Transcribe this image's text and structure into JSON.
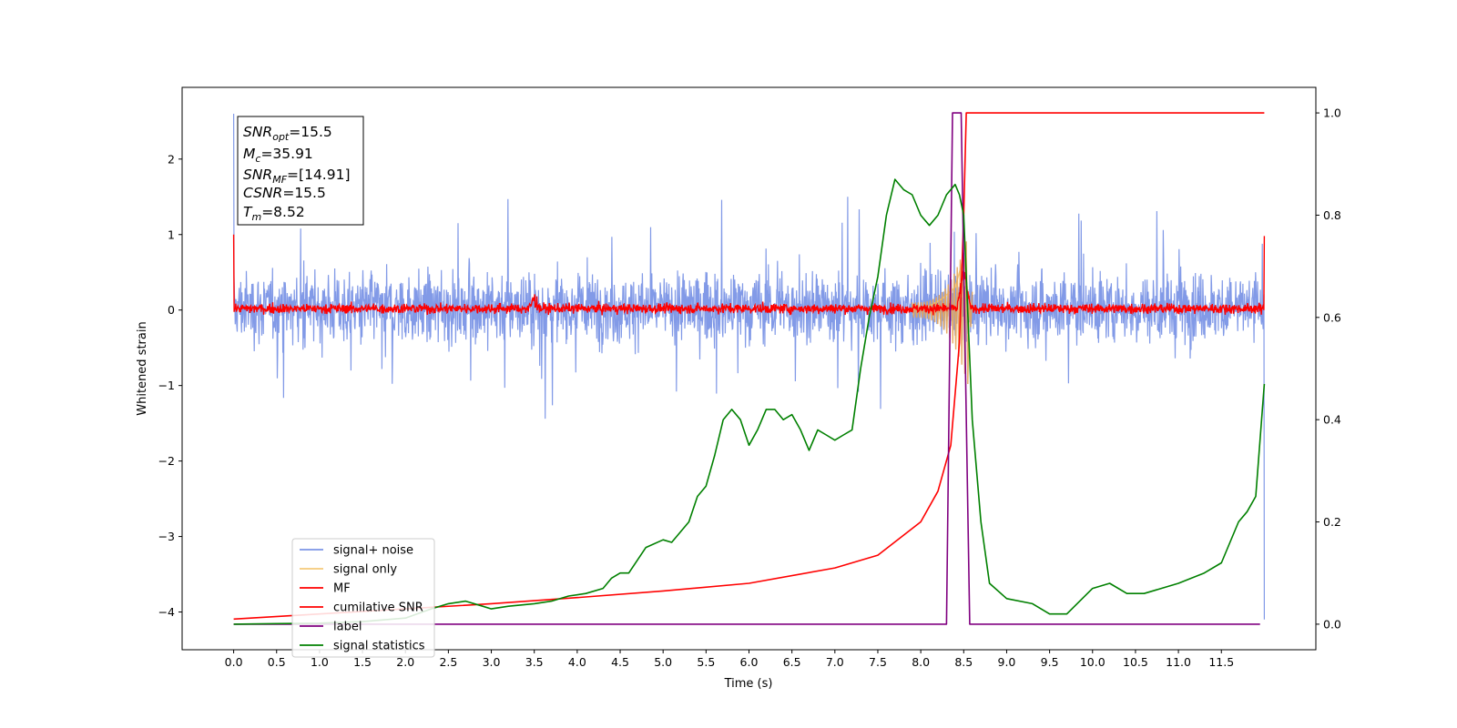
{
  "chart_data": {
    "type": "line",
    "xlabel": "Time (s)",
    "ylabel_left": "Whitened strain",
    "ylabel_right": "",
    "xlim": [
      -0.6,
      12.6
    ],
    "ylim_left": [
      -4.5,
      2.95
    ],
    "ylim_right": [
      -0.05,
      1.05
    ],
    "grid": false,
    "x_ticks": [
      "0.0",
      "0.5",
      "1.0",
      "1.5",
      "2.0",
      "2.5",
      "3.0",
      "3.5",
      "4.0",
      "4.5",
      "5.0",
      "5.5",
      "6.0",
      "6.5",
      "7.0",
      "7.5",
      "8.0",
      "8.5",
      "9.0",
      "9.5",
      "10.0",
      "10.5",
      "11.0",
      "11.5"
    ],
    "y_ticks_left": [
      "2",
      "1",
      "0",
      "−1",
      "−2",
      "−3",
      "−4"
    ],
    "y_ticks_right": [
      "1.0",
      "0.8",
      "0.6",
      "0.4",
      "0.2",
      "0.0"
    ],
    "info_box": {
      "snr_opt": {
        "main": "SNR",
        "sub": "opt",
        "value": "=15.5"
      },
      "mc": {
        "main": "M",
        "sub": "c",
        "value": "=35.91"
      },
      "snr_mf": {
        "main": "SNR",
        "sub": "MF",
        "value": "=[14.91]"
      },
      "csnr": {
        "main": "CSNR",
        "sub": "",
        "value": "=15.5"
      },
      "tm": {
        "main": "T",
        "sub": "m",
        "value": "=8.52"
      }
    },
    "legend": {
      "position": "lower-left",
      "entries": [
        {
          "label": "signal+ noise",
          "color": "#7b95e6"
        },
        {
          "label": "signal only",
          "color": "#f5c97a"
        },
        {
          "label": "MF",
          "color": "#ff0000"
        },
        {
          "label": "cumilative SNR",
          "color": "#ff0000"
        },
        {
          "label": "label",
          "color": "#800080"
        },
        {
          "label": "signal statistics",
          "color": "#008000"
        }
      ]
    },
    "series": [
      {
        "name": "signal+ noise",
        "axis": "left",
        "color": "#7b95e6",
        "x_range": [
          0,
          12
        ],
        "envelope_approx": [
          0.95,
          -0.95
        ],
        "endpoint_spikes": [
          {
            "x": 0.0,
            "y": 2.6
          },
          {
            "x": 12.0,
            "y": -4.1
          }
        ]
      },
      {
        "name": "signal only",
        "axis": "left",
        "color": "#f5c97a",
        "points": [
          [
            7.9,
            0.0
          ],
          [
            8.1,
            0.05
          ],
          [
            8.25,
            0.15
          ],
          [
            8.4,
            0.3
          ],
          [
            8.5,
            0.7
          ],
          [
            8.55,
            0.2
          ],
          [
            8.6,
            0.0
          ]
        ]
      },
      {
        "name": "MF",
        "axis": "left",
        "color": "#ff0000",
        "x_range": [
          0,
          12
        ],
        "envelope_approx": [
          0.12,
          -0.08
        ],
        "bumps": [
          {
            "x": 3.5,
            "y": 0.3
          },
          {
            "x": 8.5,
            "y": 0.7
          }
        ]
      },
      {
        "name": "cumilative SNR",
        "axis": "right",
        "color": "#ff0000",
        "points": [
          [
            0.0,
            0.01
          ],
          [
            1.0,
            0.02
          ],
          [
            2.0,
            0.03
          ],
          [
            3.0,
            0.04
          ],
          [
            4.0,
            0.052
          ],
          [
            5.0,
            0.065
          ],
          [
            6.0,
            0.08
          ],
          [
            7.0,
            0.11
          ],
          [
            7.5,
            0.135
          ],
          [
            8.0,
            0.2
          ],
          [
            8.2,
            0.26
          ],
          [
            8.35,
            0.35
          ],
          [
            8.45,
            0.55
          ],
          [
            8.5,
            0.8
          ],
          [
            8.53,
            1.0
          ],
          [
            12.0,
            1.0
          ]
        ]
      },
      {
        "name": "label",
        "axis": "right",
        "color": "#800080",
        "points": [
          [
            0.0,
            0.0
          ],
          [
            8.3,
            0.0
          ],
          [
            8.37,
            1.0
          ],
          [
            8.47,
            1.0
          ],
          [
            8.57,
            0.0
          ],
          [
            11.95,
            0.0
          ]
        ]
      },
      {
        "name": "signal statistics",
        "axis": "right",
        "color": "#008000",
        "points": [
          [
            0.0,
            0.0
          ],
          [
            0.5,
            0.001
          ],
          [
            1.0,
            0.002
          ],
          [
            1.5,
            0.005
          ],
          [
            2.0,
            0.012
          ],
          [
            2.3,
            0.03
          ],
          [
            2.5,
            0.04
          ],
          [
            2.7,
            0.045
          ],
          [
            2.9,
            0.035
          ],
          [
            3.0,
            0.03
          ],
          [
            3.2,
            0.035
          ],
          [
            3.5,
            0.04
          ],
          [
            3.7,
            0.045
          ],
          [
            3.9,
            0.055
          ],
          [
            4.1,
            0.06
          ],
          [
            4.3,
            0.07
          ],
          [
            4.4,
            0.09
          ],
          [
            4.5,
            0.1
          ],
          [
            4.6,
            0.1
          ],
          [
            4.8,
            0.15
          ],
          [
            5.0,
            0.165
          ],
          [
            5.1,
            0.16
          ],
          [
            5.3,
            0.2
          ],
          [
            5.4,
            0.25
          ],
          [
            5.5,
            0.27
          ],
          [
            5.6,
            0.33
          ],
          [
            5.7,
            0.4
          ],
          [
            5.8,
            0.42
          ],
          [
            5.9,
            0.4
          ],
          [
            6.0,
            0.35
          ],
          [
            6.1,
            0.38
          ],
          [
            6.2,
            0.42
          ],
          [
            6.3,
            0.42
          ],
          [
            6.4,
            0.4
          ],
          [
            6.5,
            0.41
          ],
          [
            6.6,
            0.38
          ],
          [
            6.7,
            0.34
          ],
          [
            6.8,
            0.38
          ],
          [
            6.9,
            0.37
          ],
          [
            7.0,
            0.36
          ],
          [
            7.1,
            0.37
          ],
          [
            7.2,
            0.38
          ],
          [
            7.3,
            0.5
          ],
          [
            7.4,
            0.6
          ],
          [
            7.5,
            0.68
          ],
          [
            7.6,
            0.8
          ],
          [
            7.7,
            0.87
          ],
          [
            7.8,
            0.85
          ],
          [
            7.9,
            0.84
          ],
          [
            8.0,
            0.8
          ],
          [
            8.1,
            0.78
          ],
          [
            8.2,
            0.8
          ],
          [
            8.3,
            0.84
          ],
          [
            8.4,
            0.86
          ],
          [
            8.45,
            0.84
          ],
          [
            8.5,
            0.8
          ],
          [
            8.6,
            0.4
          ],
          [
            8.7,
            0.2
          ],
          [
            8.8,
            0.08
          ],
          [
            9.0,
            0.05
          ],
          [
            9.3,
            0.04
          ],
          [
            9.5,
            0.02
          ],
          [
            9.7,
            0.02
          ],
          [
            10.0,
            0.07
          ],
          [
            10.2,
            0.08
          ],
          [
            10.4,
            0.06
          ],
          [
            10.6,
            0.06
          ],
          [
            11.0,
            0.08
          ],
          [
            11.3,
            0.1
          ],
          [
            11.5,
            0.12
          ],
          [
            11.6,
            0.16
          ],
          [
            11.7,
            0.2
          ],
          [
            11.8,
            0.22
          ],
          [
            11.9,
            0.25
          ],
          [
            12.0,
            0.47
          ]
        ]
      }
    ]
  }
}
